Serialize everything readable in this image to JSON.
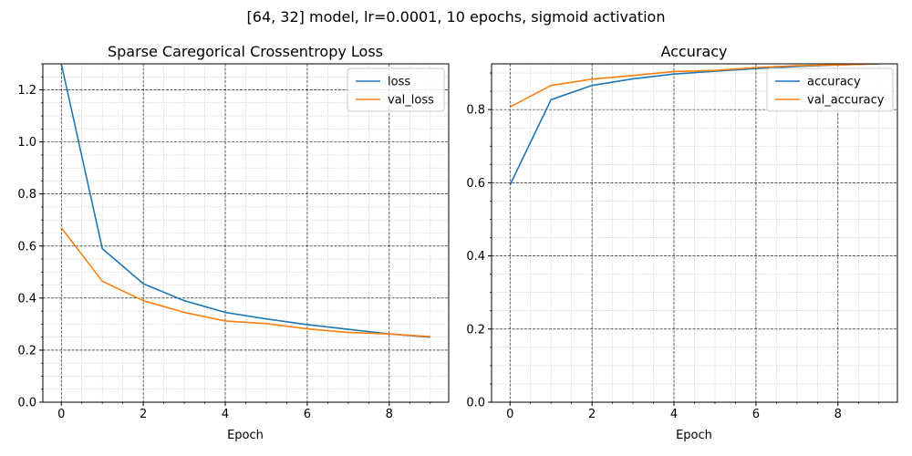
{
  "suptitle": "[64, 32] model, lr=0.0001, 10 epochs, sigmoid activation",
  "chart_data": [
    {
      "type": "line",
      "title": "Sparse Caregorical Crossentropy Loss",
      "xlabel": "Epoch",
      "ylabel": "",
      "x": [
        0,
        1,
        2,
        3,
        4,
        5,
        6,
        7,
        8,
        9
      ],
      "xlim": [
        -0.45,
        9.45
      ],
      "ylim": [
        0.0,
        1.3
      ],
      "xticks": [
        0,
        2,
        4,
        6,
        8
      ],
      "yticks": [
        0.0,
        0.2,
        0.4,
        0.6,
        0.8,
        1.0,
        1.2
      ],
      "ytick_labels": [
        "0.0",
        "0.2",
        "0.4",
        "0.6",
        "0.8",
        "1.0",
        "1.2"
      ],
      "grid": true,
      "legend_position": "upper-right",
      "series": [
        {
          "name": "loss",
          "color": "#1f77b4",
          "values": [
            1.3,
            0.59,
            0.455,
            0.39,
            0.345,
            0.32,
            0.298,
            0.28,
            0.262,
            0.25
          ]
        },
        {
          "name": "val_loss",
          "color": "#ff7f0e",
          "values": [
            0.67,
            0.465,
            0.39,
            0.345,
            0.312,
            0.302,
            0.282,
            0.268,
            0.262,
            0.252
          ]
        }
      ]
    },
    {
      "type": "line",
      "title": "Accuracy",
      "xlabel": "Epoch",
      "ylabel": "",
      "x": [
        0,
        1,
        2,
        3,
        4,
        5,
        6,
        7,
        8,
        9
      ],
      "xlim": [
        -0.45,
        9.45
      ],
      "ylim": [
        0.0,
        0.925
      ],
      "xticks": [
        0,
        2,
        4,
        6,
        8
      ],
      "yticks": [
        0.0,
        0.2,
        0.4,
        0.6,
        0.8
      ],
      "ytick_labels": [
        "0.0",
        "0.2",
        "0.4",
        "0.6",
        "0.8"
      ],
      "grid": true,
      "legend_position": "upper-right",
      "series": [
        {
          "name": "accuracy",
          "color": "#1f77b4",
          "values": [
            0.594,
            0.827,
            0.866,
            0.884,
            0.897,
            0.905,
            0.912,
            0.918,
            0.922,
            0.925
          ]
        },
        {
          "name": "val_accuracy",
          "color": "#ff7f0e",
          "values": [
            0.807,
            0.866,
            0.883,
            0.893,
            0.904,
            0.907,
            0.915,
            0.92,
            0.922,
            0.925
          ]
        }
      ]
    }
  ]
}
